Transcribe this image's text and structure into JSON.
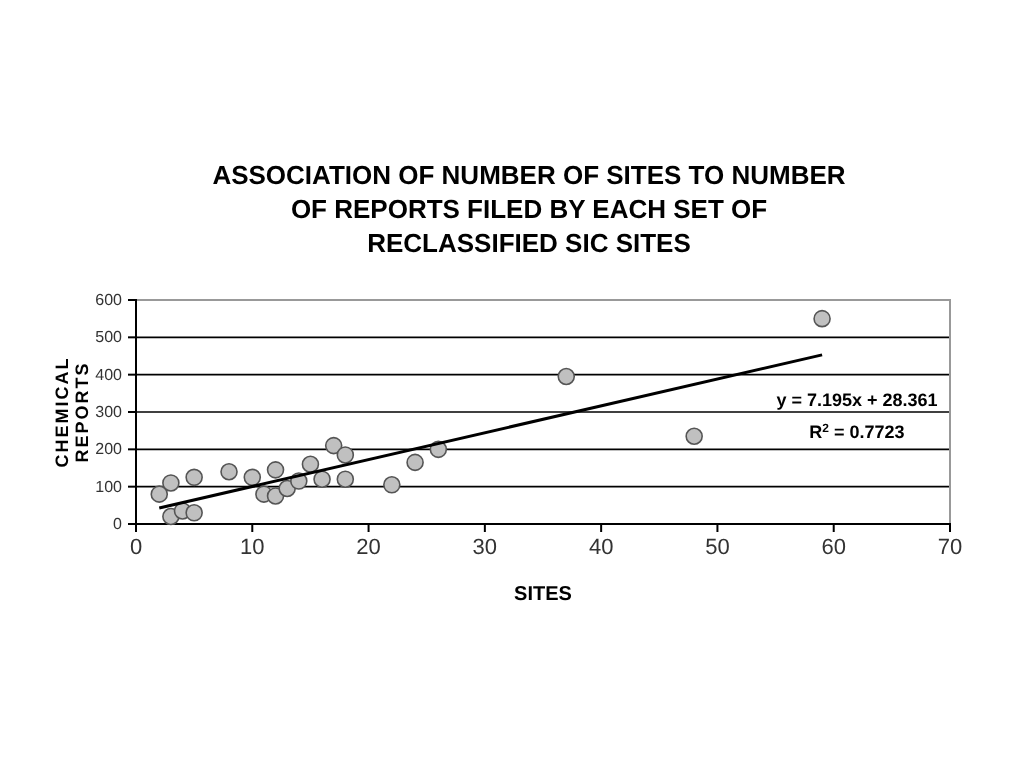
{
  "chart_data": {
    "type": "scatter",
    "title": "ASSOCIATION OF NUMBER OF SITES TO NUMBER OF REPORTS FILED BY EACH SET OF RECLASSIFIED SIC SITES",
    "xlabel": "SITES",
    "ylabel": "CHEMICAL REPORTS",
    "series": [
      {
        "color": "#c0c0c0",
        "marker": "circle",
        "x": [
          2,
          3,
          3,
          4,
          5,
          5,
          8,
          10,
          11,
          12,
          12,
          13,
          14,
          15,
          16,
          17,
          18,
          18,
          22,
          24,
          26,
          37,
          48,
          59
        ],
        "values": [
          80,
          110,
          20,
          35,
          125,
          30,
          140,
          125,
          80,
          145,
          75,
          95,
          115,
          160,
          120,
          210,
          185,
          120,
          105,
          165,
          200,
          395,
          235,
          550
        ]
      },
      {
        "type": "line",
        "color": "#000000",
        "x": [
          2,
          59
        ],
        "values": [
          43,
          453
        ]
      }
    ],
    "annotations": [
      "y = 7.195x + 28.361",
      "R$^{2}$ = 0.7723"
    ],
    "xlim": [
      0,
      70
    ],
    "xticks": [
      0,
      10,
      20,
      30,
      40,
      50,
      60,
      70
    ],
    "ylim": [
      0,
      600
    ],
    "yticks": [
      0,
      100,
      200,
      300,
      400,
      500,
      600
    ],
    "grid": "y"
  }
}
